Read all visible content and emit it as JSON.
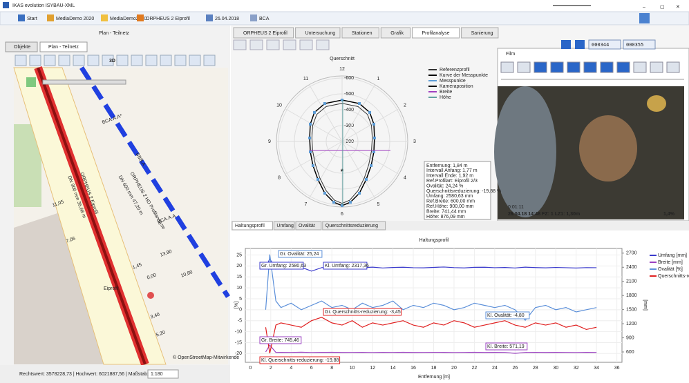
{
  "window": {
    "title": "IKAS evolution ISYBAU-XML"
  },
  "tabs": [
    "Start",
    "MediaDemo 2020",
    "MediaDemo2020",
    "ORPHEUS 2 Eiprofil",
    "26.04.2018",
    "BCA"
  ],
  "left_panel": {
    "title": "Plan - Teilnetz",
    "tabs": [
      "Objekte",
      "Plan - Teilnetz"
    ],
    "toolbar_label": "3D",
    "map_labels": [
      "ORPHEUS 2 Eiprofil",
      "DN 900 mm 35,68 m",
      "ORPHEUS 2 HD Profilanalyse",
      "DN 600 mm 47,20 m",
      "Eiprofil",
      "BBB.A",
      "BCA.A.A*",
      "BCA.A.A",
      "11,05",
      "7,05",
      "13,90",
      "10,80",
      "0,00",
      "3,40",
      "5,20",
      "1,45",
      "© OpenStreetMap-Mitwirkende"
    ],
    "status": "Rechtswert: 3578228,73 | Hochwert: 6021887,56 | Maßstab:",
    "scale": "1:180"
  },
  "view_tabs": [
    "ORPHEUS 2 Eiprofil",
    "Untersuchung",
    "Stationen",
    "Grafik",
    "Profilanalyse",
    "Sanierung"
  ],
  "film": {
    "title": "Film",
    "counter_start": "000344",
    "counter_end": "000355",
    "overlay_time": "0:01:11",
    "overlay_info": "26.04.18 14:48 FZ: 1   LZ1: 1,30m",
    "overlay_slope": "1,4%"
  },
  "bottom_tabs": [
    "Haltungsprofil",
    "Umfang",
    "Ovalität",
    "Querschnittsreduzierung"
  ],
  "chart_data": [
    {
      "type": "polar",
      "title": "Querschnitt",
      "angle_labels": [
        "12",
        "1",
        "2",
        "3",
        "4",
        "5",
        "6",
        "7",
        "8",
        "9",
        "10",
        "11"
      ],
      "ylim": [
        -200,
        -613
      ],
      "yticks": [
        -600,
        -500,
        -400,
        -300,
        -200
      ],
      "series": [
        {
          "name": "Referenzprofil",
          "color": "#333333",
          "x": [
            0,
            100,
            160,
            185,
            190,
            185,
            168,
            140,
            100,
            48,
            0,
            -48,
            -100,
            -140,
            -168,
            -185,
            -190,
            -185,
            -160,
            -100,
            0
          ],
          "y": [
            -440,
            -420,
            -370,
            -300,
            -222,
            -140,
            -55,
            30,
            110,
            170,
            190,
            170,
            110,
            30,
            -55,
            -140,
            -222,
            -300,
            -370,
            -420,
            -440
          ]
        },
        {
          "name": "Kurve der Messpunkte",
          "color": "#000000",
          "x": [
            0,
            109,
            174,
            200,
            204,
            200,
            183,
            152,
            109,
            52,
            0,
            -52,
            -109,
            -152,
            -183,
            -200,
            -204,
            -200,
            -174,
            -109,
            0
          ],
          "y": [
            -461,
            -439,
            -383,
            -309,
            -222,
            -135,
            -48,
            39,
            126,
            183,
            204,
            183,
            126,
            39,
            -48,
            -135,
            -222,
            -309,
            -383,
            -439,
            -461
          ]
        },
        {
          "name": "Messpunkte",
          "color": "#5b9bd5",
          "x": [
            0,
            109,
            174,
            200,
            204,
            200,
            183,
            152,
            109,
            52,
            0,
            -52,
            -109,
            -152,
            -183,
            -200,
            -204,
            -200,
            -174,
            -109
          ],
          "y": [
            -461,
            -439,
            -383,
            -309,
            -222,
            -135,
            -48,
            39,
            126,
            183,
            204,
            183,
            126,
            39,
            -48,
            -135,
            -222,
            -309,
            -383,
            -439
          ]
        },
        {
          "name": "Kameraposition",
          "color": "#000000",
          "x": [
            0
          ],
          "y": [
            -17
          ]
        },
        {
          "name": "Breite",
          "color": "#a040c0",
          "x": [
            -204,
            304
          ],
          "y": [
            -143,
            -143
          ]
        },
        {
          "name": "Höhe",
          "color": "#60a0a0",
          "x": [
            4,
            4
          ],
          "y": [
            -461,
            204
          ]
        }
      ],
      "info": [
        "Entfernung: 1,84 m",
        "Intervall Anfang: 1,77 m",
        "Intervall Ende: 1,92 m",
        "Ref.Profilart: Eiprofil 2/3",
        "Ovalität: 24,24 %",
        "Querschnittsreduzierung: -19,88 %",
        "Umfang: 2580,63 mm",
        "Ref.Breite: 600,00 mm",
        "Ref.Höhe: 900,00 mm",
        "Breite: 741,44 mm",
        "Höhe: 876,09 mm"
      ]
    },
    {
      "type": "line",
      "title": "Haltungsprofil",
      "xlabel": "Entfernung [m]",
      "ylabel": "[%]",
      "y2label": "[mm]",
      "grid": true,
      "x": [
        1.5,
        1.9,
        2.5,
        3,
        4,
        5,
        6,
        7,
        8,
        9,
        10,
        11,
        12,
        13,
        14,
        15,
        16,
        17,
        18,
        19,
        20,
        21,
        22,
        23,
        24,
        25,
        26,
        27,
        28,
        29,
        30,
        31,
        32,
        33,
        34
      ],
      "xlim": [
        -0.5,
        36.5
      ],
      "xticks": [
        0,
        2,
        4,
        6,
        8,
        10,
        12,
        14,
        16,
        18,
        20,
        22,
        24,
        26,
        28,
        30,
        32,
        34,
        36
      ],
      "ylim": [
        -24,
        28
      ],
      "yticks": [
        -20,
        -15,
        -10,
        -5,
        0,
        5,
        10,
        15,
        20,
        25
      ],
      "y2lim": [
        380,
        2800
      ],
      "y2ticks": [
        600,
        900,
        1200,
        1500,
        1800,
        2100,
        2400,
        2700
      ],
      "series": [
        {
          "name": "Umfang [mm]",
          "color": "#3a3acc",
          "axis": "y2",
          "values": [
            2390,
            2580.63,
            2360,
            2395,
            2385,
            2400,
            2317.36,
            2392,
            2405,
            2388,
            2398,
            2390,
            2402,
            2385,
            2395,
            2400,
            2390,
            2388,
            2397,
            2405,
            2392,
            2386,
            2398,
            2400,
            2390,
            2395,
            2385,
            2402,
            2393,
            2388,
            2396,
            2390,
            2384,
            2392,
            2390
          ]
        },
        {
          "name": "Breite [mm]",
          "color": "#9a3fc0",
          "axis": "y2",
          "values": [
            600,
            745.46,
            590,
            592,
            590,
            594,
            588,
            591,
            593,
            589,
            590,
            592,
            588,
            591,
            590,
            593,
            589,
            590,
            592,
            591,
            588,
            590,
            593,
            589,
            591,
            590,
            571.19,
            590,
            592,
            589,
            591,
            590,
            588,
            592,
            590
          ]
        },
        {
          "name": "Ovalität [%]",
          "color": "#5b8fd9",
          "values": [
            0,
            25.24,
            4,
            1,
            3,
            0,
            2,
            4,
            1,
            2,
            0,
            3,
            1,
            2,
            4,
            0,
            2,
            1,
            3,
            2,
            0,
            1,
            3,
            2,
            1,
            2,
            0,
            -4.8,
            1,
            2,
            0,
            1,
            -1,
            0,
            1
          ]
        },
        {
          "name": "Querschnitts-reduzierung [%]",
          "color": "#e02020",
          "values": [
            -8,
            -19.88,
            -7,
            -6,
            -7,
            -8,
            -5,
            -3.45,
            -6,
            -7,
            -5,
            -8,
            -6,
            -7,
            -6,
            -5,
            -7,
            -8,
            -6,
            -7,
            -5,
            -6,
            -8,
            -7,
            -6,
            -5,
            -7,
            -8,
            -6,
            -7,
            -6,
            -8,
            -7,
            -9,
            -8
          ]
        }
      ],
      "annotations": [
        "Gr. Ovalität: 25,24",
        "Gr. Umfang: 2580,63",
        "Kl. Umfang: 2317,36",
        "Gr. Querschnitts-reduzierung: -3,45",
        "Kl. Ovalität: -4,80",
        "Gr. Breite: 745,46",
        "Kl. Breite: 571,19",
        "Kl. Querschnitts-reduzierung: -19,88"
      ]
    }
  ]
}
